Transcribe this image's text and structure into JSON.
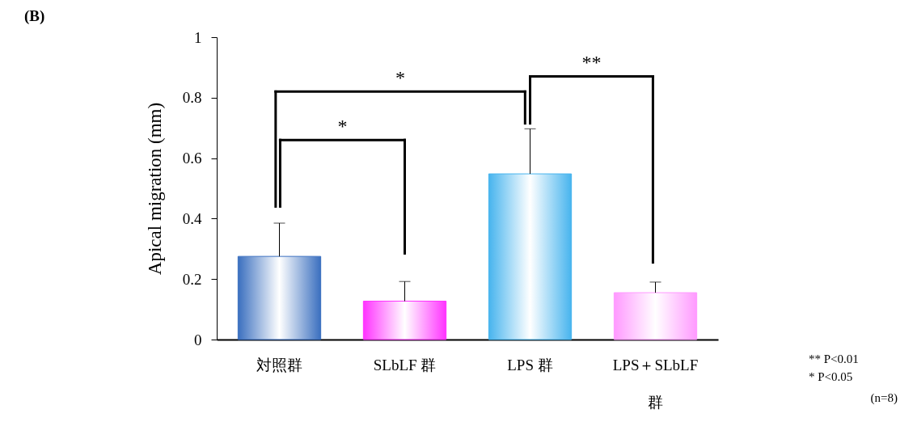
{
  "chart_data": {
    "type": "bar",
    "title": "(B)",
    "ylabel": "Apical migration (mm)",
    "categories": [
      "対照群",
      "SLbLF 群",
      "LPS 群",
      "LPS＋SLbLF 群"
    ],
    "values": [
      0.275,
      0.127,
      0.548,
      0.155
    ],
    "errors": [
      [
        0.275,
        0.385
      ],
      [
        0.127,
        0.192
      ],
      [
        0.548,
        0.697
      ],
      [
        0.155,
        0.19
      ]
    ],
    "colors": [
      "#3a6fbf",
      "#ff33ff",
      "#47b4ee",
      "#ff99ff"
    ],
    "ylim": [
      0,
      1
    ],
    "yticks": [
      0,
      0.2,
      0.4,
      0.6,
      0.8,
      1
    ],
    "grid": false,
    "annotations": [
      "*",
      "*",
      "**",
      "** P<0.01",
      "* P<0.05",
      "(n=8)"
    ]
  }
}
